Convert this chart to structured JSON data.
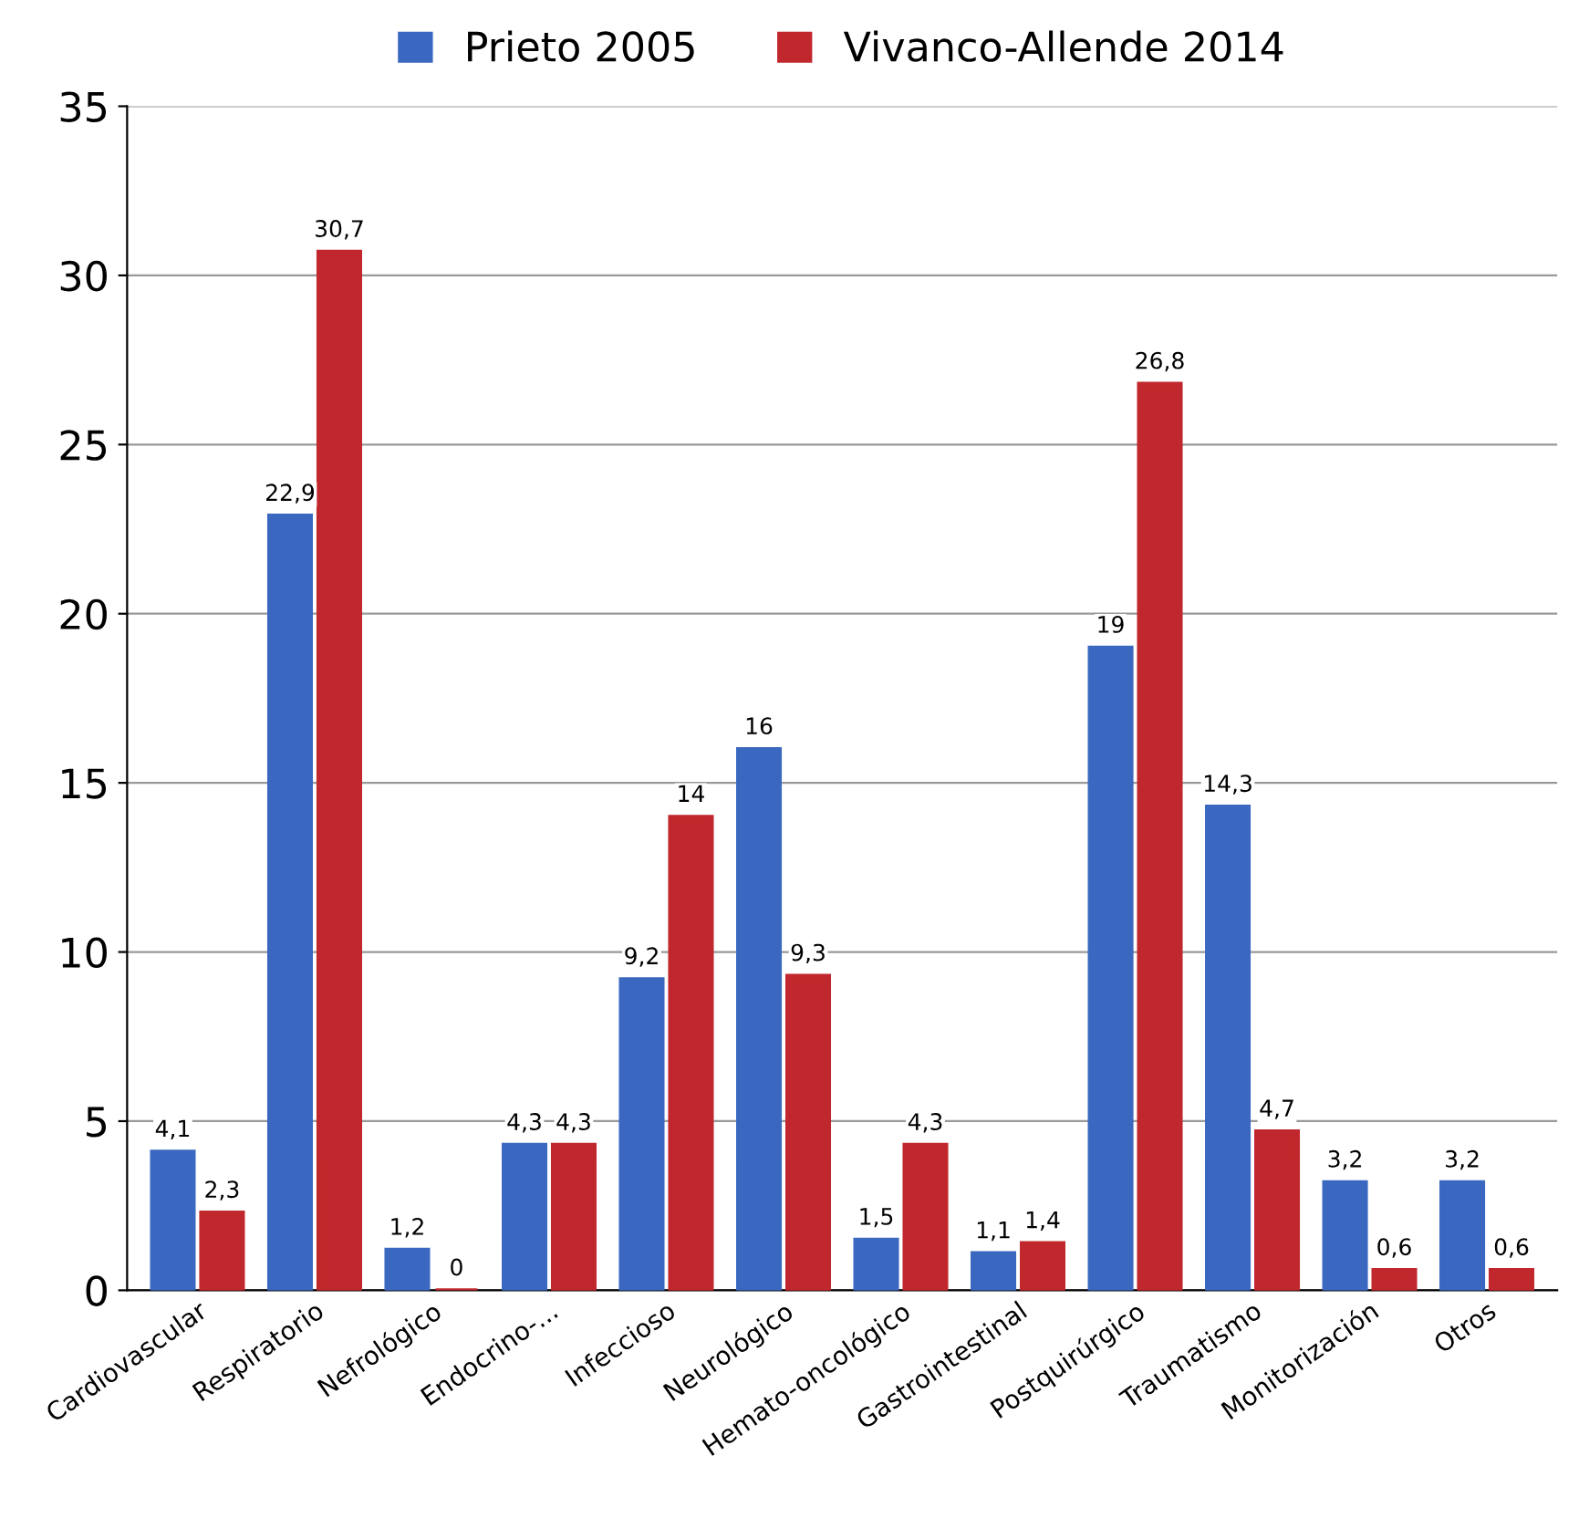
{
  "chart_data": {
    "type": "bar",
    "categories": [
      "Cardiovascular",
      "Respiratorio",
      "Nefrológico",
      "Endocrino-...",
      "Infeccioso",
      "Neurológico",
      "Hemato-oncológico",
      "Gastrointestinal",
      "Postquirúrgico",
      "Traumatismo",
      "Monitorización",
      "Otros"
    ],
    "series": [
      {
        "name": "Prieto 2005",
        "color": "#3a68c0",
        "values": [
          4.1,
          22.9,
          1.2,
          4.3,
          9.2,
          16,
          1.5,
          1.1,
          19,
          14.3,
          3.2,
          3.2
        ],
        "value_labels": [
          "4,1",
          "22,9",
          "1,2",
          "4,3",
          "9,2",
          "16",
          "1,5",
          "1,1",
          "19",
          "14,3",
          "3,2",
          "3,2"
        ]
      },
      {
        "name": "Vivanco-Allende 2014",
        "color": "#c0282d",
        "values": [
          2.3,
          30.7,
          0,
          4.3,
          14,
          9.3,
          4.3,
          1.4,
          26.8,
          4.7,
          0.6,
          0.6
        ],
        "value_labels": [
          "2,3",
          "30,7",
          "0",
          "4,3",
          "14",
          "9,3",
          "4,3",
          "1,4",
          "26,8",
          "4,7",
          "0,6",
          "0,6"
        ]
      }
    ],
    "ylim": [
      0,
      35
    ],
    "yticks": [
      0,
      5,
      10,
      15,
      20,
      25,
      30,
      35
    ],
    "grid": "y",
    "legend": "top"
  }
}
